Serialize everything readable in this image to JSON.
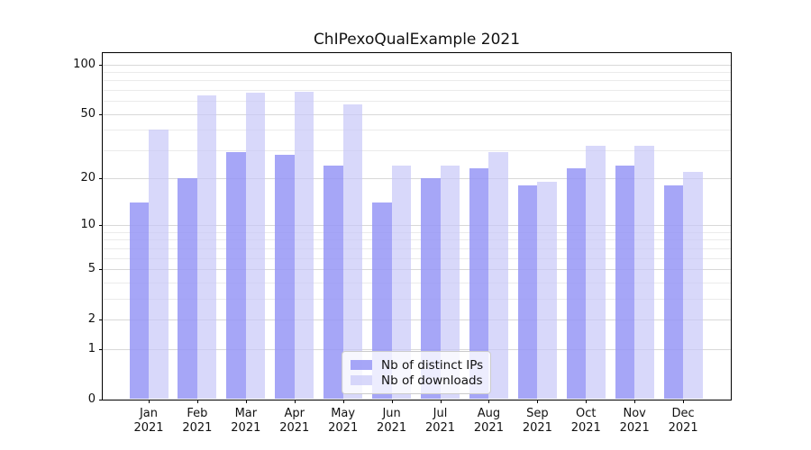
{
  "chart_data": {
    "type": "bar",
    "title": "ChIPexoQualExample 2021",
    "categories": [
      "Jan 2021",
      "Feb 2021",
      "Mar 2021",
      "Apr 2021",
      "May 2021",
      "Jun 2021",
      "Jul 2021",
      "Aug 2021",
      "Sep 2021",
      "Oct 2021",
      "Nov 2021",
      "Dec 2021"
    ],
    "series": [
      {
        "name": "Nb of distinct IPs",
        "color": "#a6a6f7",
        "fill": "rgba(150,150,246,0.85)",
        "values": [
          14,
          20,
          29,
          28,
          24,
          14,
          20,
          23,
          18,
          23,
          24,
          18
        ]
      },
      {
        "name": "Nb of downloads",
        "color": "#d9d9fa",
        "fill": "rgba(200,200,248,0.7)",
        "values": [
          40,
          65,
          67,
          68,
          57,
          24,
          24,
          29,
          19,
          32,
          32,
          22
        ]
      }
    ],
    "xlabel": "",
    "ylabel": "",
    "yscale": "log1p",
    "ylim": [
      0,
      117
    ],
    "y_ticks": [
      0,
      1,
      2,
      5,
      10,
      20,
      50,
      100
    ],
    "y_gridlines_major": [
      1,
      2,
      5,
      10,
      20,
      50,
      100
    ],
    "y_gridlines_minor": [
      3,
      4,
      6,
      7,
      8,
      9,
      30,
      40,
      60,
      70,
      80,
      90
    ],
    "grid": true,
    "legend_position": "lower center"
  },
  "colors": {
    "axis": "#000000",
    "gridline_major": "#d8d8d8",
    "gridline_minor": "#ebebeb",
    "background": "#ffffff"
  }
}
